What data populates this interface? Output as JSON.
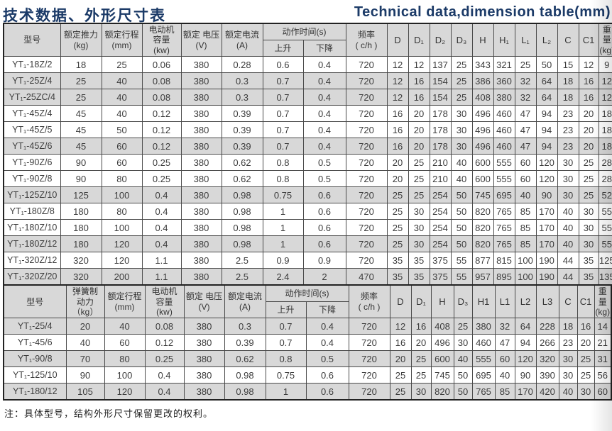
{
  "page": {
    "title_zh": "技术数据、外形尺寸表",
    "title_en": "Technical data,dimension table(mm)",
    "note": "注：具体型号，结构外形尺寸保留更改的权利。"
  },
  "colors": {
    "title_navy": "#1b3a67",
    "row_shade": "#d8d8d8",
    "border": "#4a4a4a"
  },
  "table1": {
    "header": {
      "model": "型号",
      "thrust": "额定推力\n(kg)",
      "stroke": "额定行程\n(mm)",
      "motor": "电动机\n容量\n(kw)",
      "voltage": "额定 电压\n(V)",
      "current": "额定电流\n(A)",
      "action": "动作时间(s)",
      "rise": "上升",
      "fall": "下降",
      "freq": "频率\n( c/h )",
      "dims": [
        "D",
        "D₁",
        "D₂",
        "D₃",
        "H",
        "H₁",
        "L₁",
        "L₂",
        "C",
        "C1"
      ],
      "weight": "重量\n(kg)"
    },
    "rows": [
      {
        "shaded": false,
        "cells": [
          "YT₁-18Z/2",
          "18",
          "25",
          "0.06",
          "380",
          "0.28",
          "0.6",
          "0.4",
          "720",
          "12",
          "12",
          "137",
          "25",
          "343",
          "321",
          "25",
          "50",
          "15",
          "12",
          "9"
        ]
      },
      {
        "shaded": true,
        "cells": [
          "YT₁-25Z/4",
          "25",
          "40",
          "0.08",
          "380",
          "0.3",
          "0.7",
          "0.4",
          "720",
          "12",
          "16",
          "154",
          "25",
          "386",
          "360",
          "32",
          "64",
          "18",
          "16",
          "12"
        ]
      },
      {
        "shaded": true,
        "cells": [
          "YT₁-25ZC/4",
          "25",
          "40",
          "0.08",
          "380",
          "0.3",
          "0.7",
          "0.4",
          "720",
          "12",
          "16",
          "154",
          "25",
          "408",
          "380",
          "32",
          "64",
          "18",
          "16",
          "12"
        ]
      },
      {
        "shaded": false,
        "cells": [
          "YT₁-45Z/4",
          "45",
          "40",
          "0.12",
          "380",
          "0.39",
          "0.7",
          "0.4",
          "720",
          "16",
          "20",
          "178",
          "30",
          "496",
          "460",
          "47",
          "94",
          "23",
          "20",
          "18"
        ]
      },
      {
        "shaded": false,
        "cells": [
          "YT₁-45Z/5",
          "45",
          "50",
          "0.12",
          "380",
          "0.39",
          "0.7",
          "0.4",
          "720",
          "16",
          "20",
          "178",
          "30",
          "496",
          "460",
          "47",
          "94",
          "23",
          "20",
          "18"
        ]
      },
      {
        "shaded": true,
        "cells": [
          "YT₁-45Z/6",
          "45",
          "60",
          "0.12",
          "380",
          "0.39",
          "0.7",
          "0.4",
          "720",
          "16",
          "20",
          "178",
          "30",
          "496",
          "460",
          "47",
          "94",
          "23",
          "20",
          "18"
        ]
      },
      {
        "shaded": false,
        "cells": [
          "YT₁-90Z/6",
          "90",
          "60",
          "0.25",
          "380",
          "0.62",
          "0.8",
          "0.5",
          "720",
          "20",
          "25",
          "210",
          "40",
          "600",
          "555",
          "60",
          "120",
          "30",
          "25",
          "28"
        ]
      },
      {
        "shaded": false,
        "cells": [
          "YT₁-90Z/8",
          "90",
          "80",
          "0.25",
          "380",
          "0.62",
          "0.8",
          "0.5",
          "720",
          "20",
          "25",
          "210",
          "40",
          "600",
          "555",
          "60",
          "120",
          "30",
          "25",
          "28"
        ]
      },
      {
        "shaded": true,
        "cells": [
          "YT₁-125Z/10",
          "125",
          "100",
          "0.4",
          "380",
          "0.98",
          "0.75",
          "0.6",
          "720",
          "25",
          "25",
          "254",
          "50",
          "745",
          "695",
          "40",
          "90",
          "30",
          "25",
          "52"
        ]
      },
      {
        "shaded": false,
        "cells": [
          "YT₁-180Z/8",
          "180",
          "80",
          "0.4",
          "380",
          "0.98",
          "1",
          "0.6",
          "720",
          "25",
          "30",
          "254",
          "50",
          "820",
          "765",
          "85",
          "170",
          "40",
          "30",
          "55"
        ]
      },
      {
        "shaded": false,
        "cells": [
          "YT₁-180Z/10",
          "180",
          "100",
          "0.4",
          "380",
          "0.98",
          "1",
          "0.6",
          "720",
          "25",
          "30",
          "254",
          "50",
          "820",
          "765",
          "85",
          "170",
          "40",
          "30",
          "55"
        ]
      },
      {
        "shaded": true,
        "cells": [
          "YT₁-180Z/12",
          "180",
          "120",
          "0.4",
          "380",
          "0.98",
          "1",
          "0.6",
          "720",
          "25",
          "30",
          "254",
          "50",
          "820",
          "765",
          "85",
          "170",
          "40",
          "30",
          "55"
        ]
      },
      {
        "shaded": false,
        "cells": [
          "YT₁-320Z/12",
          "320",
          "120",
          "1.1",
          "380",
          "2.5",
          "0.9",
          "0.9",
          "720",
          "35",
          "35",
          "375",
          "55",
          "877",
          "815",
          "100",
          "190",
          "44",
          "35",
          "125"
        ]
      },
      {
        "shaded": true,
        "cells": [
          "YT₁-320Z/20",
          "320",
          "200",
          "1.1",
          "380",
          "2.5",
          "2.4",
          "2",
          "470",
          "35",
          "35",
          "375",
          "55",
          "957",
          "895",
          "100",
          "190",
          "44",
          "35",
          "135"
        ]
      }
    ]
  },
  "table2": {
    "header": {
      "model": "型号",
      "thrust": "弹簧制\n动力\n（kg）",
      "stroke": "额定行程\n(mm)",
      "motor": "电动机\n容量\n(kw)",
      "voltage": "额定 电压\n(V)",
      "current": "额定电流\n(A)",
      "action": "动作时间(s)",
      "rise": "上升",
      "fall": "下降",
      "freq": "频率\n( c/h )",
      "dims": [
        "D",
        "D₁",
        "H",
        "D₃",
        "H1",
        "L1",
        "L2",
        "L3",
        "C",
        "C1"
      ],
      "weight": "重量\n(kg)"
    },
    "rows": [
      {
        "shaded": true,
        "cells": [
          "YT₁-25/4",
          "20",
          "40",
          "0.08",
          "380",
          "0.3",
          "0.7",
          "0.4",
          "720",
          "12",
          "16",
          "408",
          "25",
          "380",
          "32",
          "64",
          "228",
          "18",
          "16",
          "14"
        ]
      },
      {
        "shaded": false,
        "cells": [
          "YT₁-45/6",
          "40",
          "60",
          "0.12",
          "380",
          "0.39",
          "0.7",
          "0.4",
          "720",
          "16",
          "20",
          "496",
          "30",
          "460",
          "47",
          "94",
          "266",
          "23",
          "20",
          "21"
        ]
      },
      {
        "shaded": true,
        "cells": [
          "YT₁-90/8",
          "70",
          "80",
          "0.25",
          "380",
          "0.62",
          "0.8",
          "0.5",
          "720",
          "20",
          "25",
          "600",
          "40",
          "555",
          "60",
          "120",
          "320",
          "30",
          "25",
          "31"
        ]
      },
      {
        "shaded": false,
        "cells": [
          "YT₁-125/10",
          "90",
          "100",
          "0.4",
          "380",
          "0.98",
          "0.75",
          "0.6",
          "720",
          "25",
          "25",
          "745",
          "50",
          "695",
          "40",
          "90",
          "390",
          "30",
          "25",
          "56"
        ]
      },
      {
        "shaded": true,
        "cells": [
          "YT₁-180/12",
          "105",
          "120",
          "0.4",
          "380",
          "0.98",
          "1",
          "0.6",
          "720",
          "25",
          "30",
          "820",
          "50",
          "765",
          "85",
          "170",
          "420",
          "40",
          "30",
          "60"
        ]
      }
    ]
  }
}
